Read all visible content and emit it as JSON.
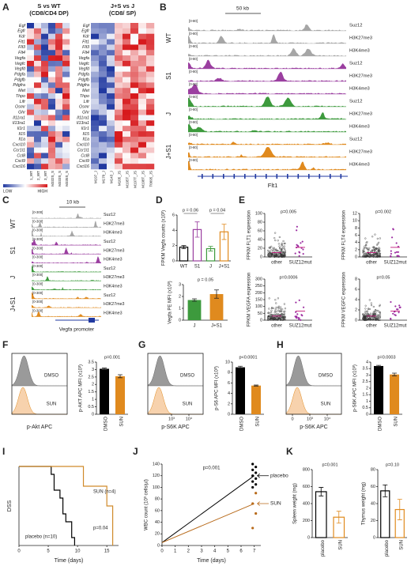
{
  "A": {
    "letter": "A",
    "left_title": [
      "S vs WT",
      "(CD8/CD4 DP)"
    ],
    "right_title": [
      "J+S vs J",
      "(CD8/ SP)"
    ],
    "genes": [
      "Egf",
      "Egfr",
      "Kdr",
      "Flt1",
      "Flt3",
      "Flt4",
      "Vegfa",
      "Vegfc",
      "Vegfd",
      "Pdgfa",
      "Pdgfb",
      "Pdgfra",
      "Met",
      "Thpo",
      "Lifr",
      "Osmr",
      "Ghr",
      "Il11ra1",
      "Il13ra1",
      "Il1r1",
      "Il15",
      "Il1a",
      "Cxcl10",
      "Ccr1l1",
      "Ccl8",
      "Cxcl9",
      "Cxcl16"
    ],
    "left_columns": [
      "1_WT",
      "2_WT",
      "3_WT",
      "M332S_S",
      "M333S_S",
      "M335S_S"
    ],
    "right_columns": [
      "M197_J",
      "M170_J",
      "M143_J",
      "M105_JS",
      "M195T_JS",
      "M197T_JS",
      "M198T_JS",
      "T0095_JS"
    ],
    "legend": [
      "LOW",
      "HIGH"
    ]
  },
  "B": {
    "letter": "B",
    "scale": "50 kb",
    "groups": [
      "WT",
      "S1",
      "J",
      "J+S1"
    ],
    "colors": [
      "#a6a6a6",
      "#9b3fa0",
      "#3d9a3d",
      "#e08a1e"
    ],
    "marks": [
      "Suz12",
      "H3K27me3",
      "H3K4me3"
    ],
    "ranges": [
      "[0-80]",
      "[0-80]",
      "[0-80]",
      "[0-80]",
      "[0-80]",
      "[0-80]",
      "[0-80]",
      "[0-80]",
      "[0-80]",
      "[0-80]",
      "[0-80]",
      "[0-80]"
    ],
    "gene": "Flt1"
  },
  "C": {
    "letter": "C",
    "scale": "10 kb",
    "groups": [
      "WT",
      "S1",
      "J",
      "J+S1"
    ],
    "colors": [
      "#a6a6a6",
      "#9b3fa0",
      "#3d9a3d",
      "#e08a1e"
    ],
    "marks": [
      "Suz12",
      "H3K27me3",
      "H3K4me3"
    ],
    "ranges": [
      "[0-300]",
      "[0-300]",
      "[0-300]",
      "[0-300]",
      "[0-300]",
      "[0-300]",
      "[0-300]",
      "[0-300]",
      "[0-300]",
      "[0-300]",
      "[0-300]",
      "[0-300]"
    ],
    "gene": "Vegfa promoter"
  },
  "D": {
    "letter": "D",
    "top": {
      "ylabel": "FPKM Vegfa counts (x10³)",
      "ylim": [
        0,
        6
      ],
      "yticks": [
        0,
        2,
        4,
        6
      ],
      "categories": [
        "WT",
        "S1",
        "J",
        "J+S1"
      ],
      "values": [
        1.8,
        4.1,
        1.6,
        3.8
      ],
      "errors": [
        0.2,
        1.0,
        0.3,
        1.0
      ],
      "colors": [
        "#000000",
        "#9b3fa0",
        "#3d9a3d",
        "#e08a1e"
      ],
      "filled": false,
      "p": [
        "p = 0.06",
        "p = 0.04"
      ]
    },
    "bottom": {
      "ylabel": "Vegfa PE MFI (x10³)",
      "ylim": [
        0,
        3
      ],
      "yticks": [
        0,
        1,
        2,
        3
      ],
      "categories": [
        "J",
        "J+S1"
      ],
      "values": [
        1.7,
        2.2
      ],
      "errors": [
        0.1,
        0.35
      ],
      "colors": [
        "#3d9a3d",
        "#e08a1e"
      ],
      "filled": true,
      "p": [
        "p = 0.05"
      ]
    }
  },
  "E": {
    "letter": "E",
    "categories": [
      "other",
      "SUZ12mut"
    ],
    "plots": [
      {
        "ylabel": "FPKM FLT1 expression",
        "p": "p=0.005",
        "ylim": [
          0,
          100
        ],
        "yticks": [
          0,
          20,
          40,
          60,
          80,
          100
        ]
      },
      {
        "ylabel": "FPKM FLT4 expression",
        "p": "p=0.002",
        "ylim": [
          0,
          12
        ],
        "yticks": [
          0,
          2,
          4,
          6,
          8,
          10,
          12
        ]
      },
      {
        "ylabel": "FPKM VEGFA expression",
        "p": "p=0.0006",
        "ylim": [
          0,
          300
        ],
        "yticks": [
          0,
          50,
          100,
          150,
          200,
          250,
          300
        ]
      },
      {
        "ylabel": "FPKM VEGFC expression",
        "p": "p=0.05",
        "ylim": [
          0,
          8
        ],
        "yticks": [
          0,
          2,
          4,
          6,
          8
        ]
      }
    ]
  },
  "F": {
    "letter": "F",
    "hist": {
      "labels": [
        "DMSO",
        "SUN"
      ],
      "xlabel": "p-Akt APC",
      "xticks": []
    },
    "bar": {
      "ylabel": "p-AKT APC MFI (x10³)",
      "ylim": [
        0,
        3.5
      ],
      "yticks": [
        0,
        0.5,
        1,
        1.5,
        2,
        2.5,
        3,
        3.5
      ],
      "categories": [
        "DMSO",
        "SUN"
      ],
      "values": [
        3.05,
        2.55
      ],
      "errors": [
        0.05,
        0.1
      ],
      "colors": [
        "#000000",
        "#e08a1e"
      ],
      "filled": true,
      "p": [
        "p=0.001"
      ]
    }
  },
  "G": {
    "letter": "G",
    "hist": {
      "labels": [
        "DMSO",
        "SUN"
      ],
      "xlabel": "p-S6K APC",
      "xticks": [
        "10³",
        "10⁴"
      ]
    },
    "bar": {
      "ylabel": "p-S6 APC MFI (x10³)",
      "ylim": [
        0,
        10
      ],
      "yticks": [
        0,
        2,
        4,
        6,
        8,
        10
      ],
      "categories": [
        "DMSO",
        "SUN"
      ],
      "values": [
        9,
        5.5
      ],
      "errors": [
        0.2,
        0.1
      ],
      "colors": [
        "#000000",
        "#e08a1e"
      ],
      "filled": true,
      "p": [
        "p<0.0001"
      ]
    }
  },
  "H": {
    "letter": "H",
    "hist": {
      "labels": [
        "DMSO",
        "SUN"
      ],
      "xlabel": "p-S6K APC",
      "xticks": [
        "0",
        "10³",
        "10⁴"
      ]
    },
    "bar": {
      "ylabel": "p-S6K APC MFI (x10³)",
      "ylim": [
        0,
        4
      ],
      "yticks": [
        0,
        0.5,
        1,
        1.5,
        2,
        2.5,
        3,
        3.5,
        4
      ],
      "categories": [
        "DMSO",
        "SUN"
      ],
      "values": [
        3.7,
        3.05
      ],
      "errors": [
        0.05,
        0.1
      ],
      "colors": [
        "#000000",
        "#e08a1e"
      ],
      "filled": true,
      "p": [
        "p=0.0003"
      ]
    }
  },
  "I": {
    "letter": "I",
    "ylabel": "DSS",
    "xlabel": "Time (days)",
    "xlim": [
      0,
      17
    ],
    "xticks": [
      0,
      5,
      10,
      15
    ],
    "ylim": [
      0,
      100
    ],
    "p": "p=0.04",
    "series": [
      {
        "name": "placebo (n=10)",
        "color": "#000000",
        "x": [
          0,
          5.5,
          6,
          7,
          7.5,
          8,
          9,
          9.5
        ],
        "values": [
          100,
          90,
          70,
          60,
          40,
          30,
          10,
          0
        ]
      },
      {
        "name": "SUN (n=4)",
        "color": "#d08a2a",
        "x": [
          0,
          11,
          15,
          16
        ],
        "values": [
          100,
          75,
          50,
          0
        ]
      }
    ]
  },
  "J": {
    "letter": "J",
    "ylabel": "WBC count (10³ cells/µl)",
    "xlabel": "Time (days)",
    "xlim": [
      0,
      7.5
    ],
    "xticks": [
      0,
      1,
      2,
      3,
      4,
      5,
      6,
      7
    ],
    "ylim": [
      0,
      140
    ],
    "yticks": [
      0,
      20,
      40,
      60,
      80,
      100,
      120,
      140
    ],
    "p": "p=0.001",
    "series": [
      {
        "name": "placebo",
        "color": "#000000",
        "x": [
          0,
          7
        ],
        "values": [
          5,
          120
        ],
        "points": [
          100,
          105,
          110,
          115,
          120,
          125,
          130,
          135,
          140
        ]
      },
      {
        "name": "SUN",
        "color": "#b86a1a",
        "x": [
          0,
          7
        ],
        "values": [
          5,
          72
        ],
        "points": [
          30,
          55,
          72,
          90
        ]
      }
    ]
  },
  "K": {
    "letter": "K",
    "spleen": {
      "ylabel": "Spleen weight (mg)",
      "ylim": [
        0,
        800
      ],
      "yticks": [
        0,
        200,
        400,
        600,
        800
      ],
      "categories": [
        "placebo",
        "SUN"
      ],
      "values": [
        540,
        240
      ],
      "errors": [
        50,
        70
      ],
      "colors": [
        "#000000",
        "#e08a1e"
      ],
      "filled": false,
      "p": [
        "p=0.001"
      ]
    },
    "thymus": {
      "ylabel": "Thymus weight (mg)",
      "ylim": [
        0,
        80
      ],
      "yticks": [
        0,
        20,
        40,
        60,
        80
      ],
      "categories": [
        "placebo",
        "SUN"
      ],
      "values": [
        55,
        33
      ],
      "errors": [
        7,
        12
      ],
      "colors": [
        "#000000",
        "#e08a1e"
      ],
      "filled": false,
      "p": [
        "p=0.10"
      ]
    }
  }
}
